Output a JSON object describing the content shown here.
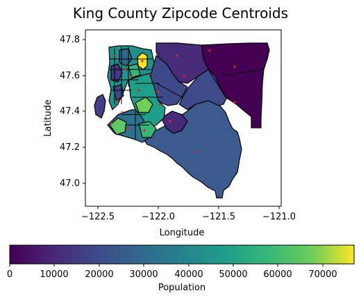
{
  "title": "King County Zipcode Centroids",
  "xlabel": "Longitude",
  "ylabel": "Latitude",
  "x_ticks": [
    "−122.5",
    "−122.0",
    "−121.5",
    "−121.0"
  ],
  "y_ticks": [
    "47.0",
    "47.2",
    "47.4",
    "47.6",
    "47.8"
  ],
  "colorbar": {
    "label": "Population",
    "ticks": [
      "0",
      "10000",
      "20000",
      "30000",
      "40000",
      "50000",
      "60000",
      "70000"
    ],
    "colormap": "viridis",
    "range": [
      0,
      77000
    ]
  },
  "colors": {
    "region_edge": "#000000",
    "centroid_marker": "#e8202a"
  },
  "chart_data": {
    "type": "choropleth",
    "title": "King County Zipcode Centroids",
    "xlabel": "Longitude",
    "ylabel": "Latitude",
    "xlim": [
      -122.6,
      -121.0
    ],
    "ylim": [
      46.87,
      47.86
    ],
    "value_label": "Population",
    "value_range": [
      0,
      77000
    ],
    "centroids": [
      {
        "lon": -121.62,
        "lat": 47.74
      },
      {
        "lon": -121.37,
        "lat": 47.65
      },
      {
        "lon": -121.37,
        "lat": 47.45
      },
      {
        "lon": -121.68,
        "lat": 47.17
      },
      {
        "lon": -121.9,
        "lat": 47.34
      },
      {
        "lon": -122.12,
        "lat": 47.69
      },
      {
        "lon": -122.2,
        "lat": 47.6
      },
      {
        "lon": -122.3,
        "lat": 47.45
      },
      {
        "lon": -122.05,
        "lat": 47.44
      }
    ]
  }
}
